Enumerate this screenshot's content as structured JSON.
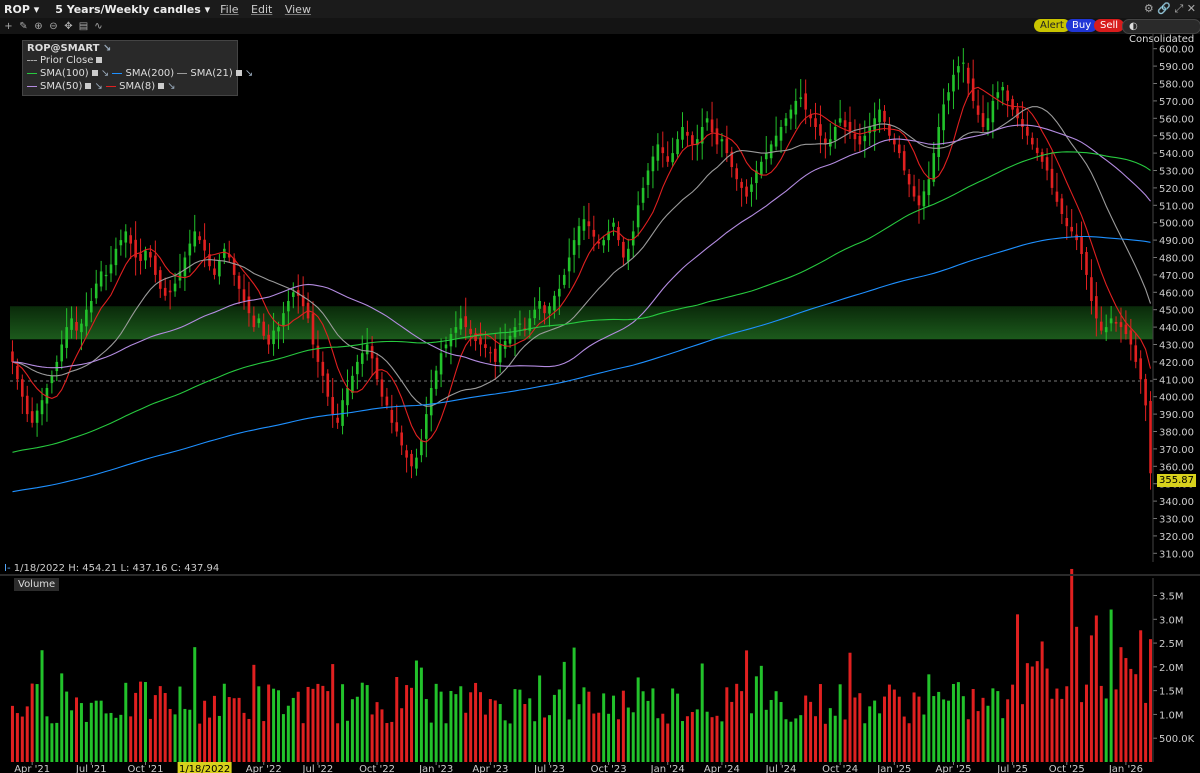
{
  "toolbar": {
    "symbol": "ROP",
    "period": "5 Years/Weekly candles",
    "menus": [
      "File",
      "Edit",
      "View"
    ],
    "buttons": {
      "alert": "Alert",
      "buy": "Buy",
      "sell": "Sell",
      "consolidated": "Consolidated"
    }
  },
  "legend": {
    "title": "ROP@SMART",
    "prior_close": "Prior Close",
    "items": [
      {
        "label": "SMA(100)",
        "color": "#27c93f"
      },
      {
        "label": "SMA(200)",
        "color": "#1e90ff"
      },
      {
        "label": "SMA(21)",
        "color": "#9a9a9a"
      },
      {
        "label": "SMA(50)",
        "color": "#b38be0"
      },
      {
        "label": "SMA(8)",
        "color": "#e02020"
      }
    ]
  },
  "ohlc_readout": "1/18/2022  H: 454.21  L: 437.16  C: 437.94",
  "last_price": "355.87",
  "volume_label": "Volume",
  "colors": {
    "up": "#22c22b",
    "down": "#e02020",
    "background": "#000000",
    "highlight_zone": "#1c5a1c"
  },
  "chart_data": [
    {
      "type": "line",
      "title": "",
      "x_ticks": [
        "Apr '21",
        "Jul '21",
        "Oct '21",
        "1/18/2022",
        "Apr '22",
        "Jul '22",
        "Oct '22",
        "Jan '23",
        "Apr '23",
        "Jul '23",
        "Oct '23",
        "Jan '24",
        "Apr '24",
        "Jul '24",
        "Oct '24",
        "Jan '25",
        "Apr '25",
        "Jul '25",
        "Oct '25",
        "Jan '26"
      ],
      "highlighted_x_tick": "1/18/2022",
      "y_ticks": [
        "600.00",
        "590.00",
        "580.00",
        "570.00",
        "560.00",
        "550.00",
        "540.00",
        "530.00",
        "520.00",
        "510.00",
        "500.00",
        "490.00",
        "480.00",
        "470.00",
        "460.00",
        "450.00",
        "440.00",
        "430.00",
        "420.00",
        "410.00",
        "400.00",
        "390.00",
        "380.00",
        "370.00",
        "360.00",
        "350.00",
        "340.00",
        "330.00",
        "320.00",
        "310.00"
      ],
      "ylim": [
        305,
        605
      ],
      "prior_close": 409,
      "highlight_band": [
        433,
        452
      ],
      "closes": [
        420,
        410,
        400,
        390,
        385,
        392,
        398,
        405,
        412,
        420,
        430,
        440,
        445,
        438,
        442,
        450,
        455,
        465,
        472,
        470,
        476,
        485,
        490,
        495,
        488,
        480,
        478,
        484,
        480,
        470,
        462,
        458,
        460,
        465,
        472,
        480,
        488,
        495,
        490,
        484,
        475,
        470,
        478,
        485,
        480,
        470,
        462,
        455,
        448,
        440,
        445,
        435,
        430,
        438,
        440,
        448,
        455,
        460,
        458,
        452,
        445,
        430,
        420,
        412,
        400,
        390,
        385,
        398,
        405,
        412,
        420,
        425,
        430,
        422,
        410,
        400,
        395,
        385,
        380,
        372,
        365,
        360,
        365,
        375,
        390,
        405,
        415,
        425,
        430,
        436,
        440,
        445,
        440,
        436,
        432,
        430,
        428,
        425,
        420,
        430,
        432,
        435,
        440,
        442,
        438,
        445,
        450,
        455,
        448,
        452,
        458,
        462,
        470,
        480,
        490,
        498,
        502,
        498,
        492,
        488,
        490,
        495,
        500,
        490,
        480,
        485,
        495,
        510,
        520,
        530,
        538,
        545,
        540,
        535,
        540,
        548,
        555,
        550,
        545,
        548,
        555,
        560,
        552,
        545,
        548,
        540,
        532,
        525,
        520,
        515,
        522,
        530,
        535,
        540,
        545,
        550,
        555,
        560,
        565,
        570,
        572,
        565,
        560,
        555,
        550,
        545,
        548,
        555,
        560,
        555,
        552,
        548,
        545,
        550,
        555,
        560,
        565,
        558,
        550,
        545,
        540,
        530,
        522,
        515,
        510,
        518,
        525,
        540,
        555,
        568,
        575,
        585,
        590,
        592,
        580,
        570,
        562,
        555,
        560,
        570,
        575,
        578,
        570,
        565,
        560,
        555,
        550,
        545,
        540,
        535,
        530,
        520,
        512,
        505,
        498,
        495,
        490,
        482,
        470,
        455,
        445,
        438,
        440,
        445,
        442,
        440,
        436,
        430,
        420,
        410,
        395,
        356
      ],
      "series": [
        {
          "name": "SMA(8)",
          "color": "#e02020"
        },
        {
          "name": "SMA(21)",
          "color": "#9a9a9a"
        },
        {
          "name": "SMA(50)",
          "color": "#b38be0"
        },
        {
          "name": "SMA(100)",
          "color": "#27c93f"
        },
        {
          "name": "SMA(200)",
          "color": "#1e90ff"
        }
      ]
    },
    {
      "type": "bar",
      "title": "Volume",
      "y_ticks": [
        "3.5M",
        "3.0M",
        "2.5M",
        "2.0M",
        "1.5M",
        "1.0M",
        "500.0K"
      ],
      "ylim": [
        0,
        3.7
      ],
      "unit": "M"
    }
  ]
}
